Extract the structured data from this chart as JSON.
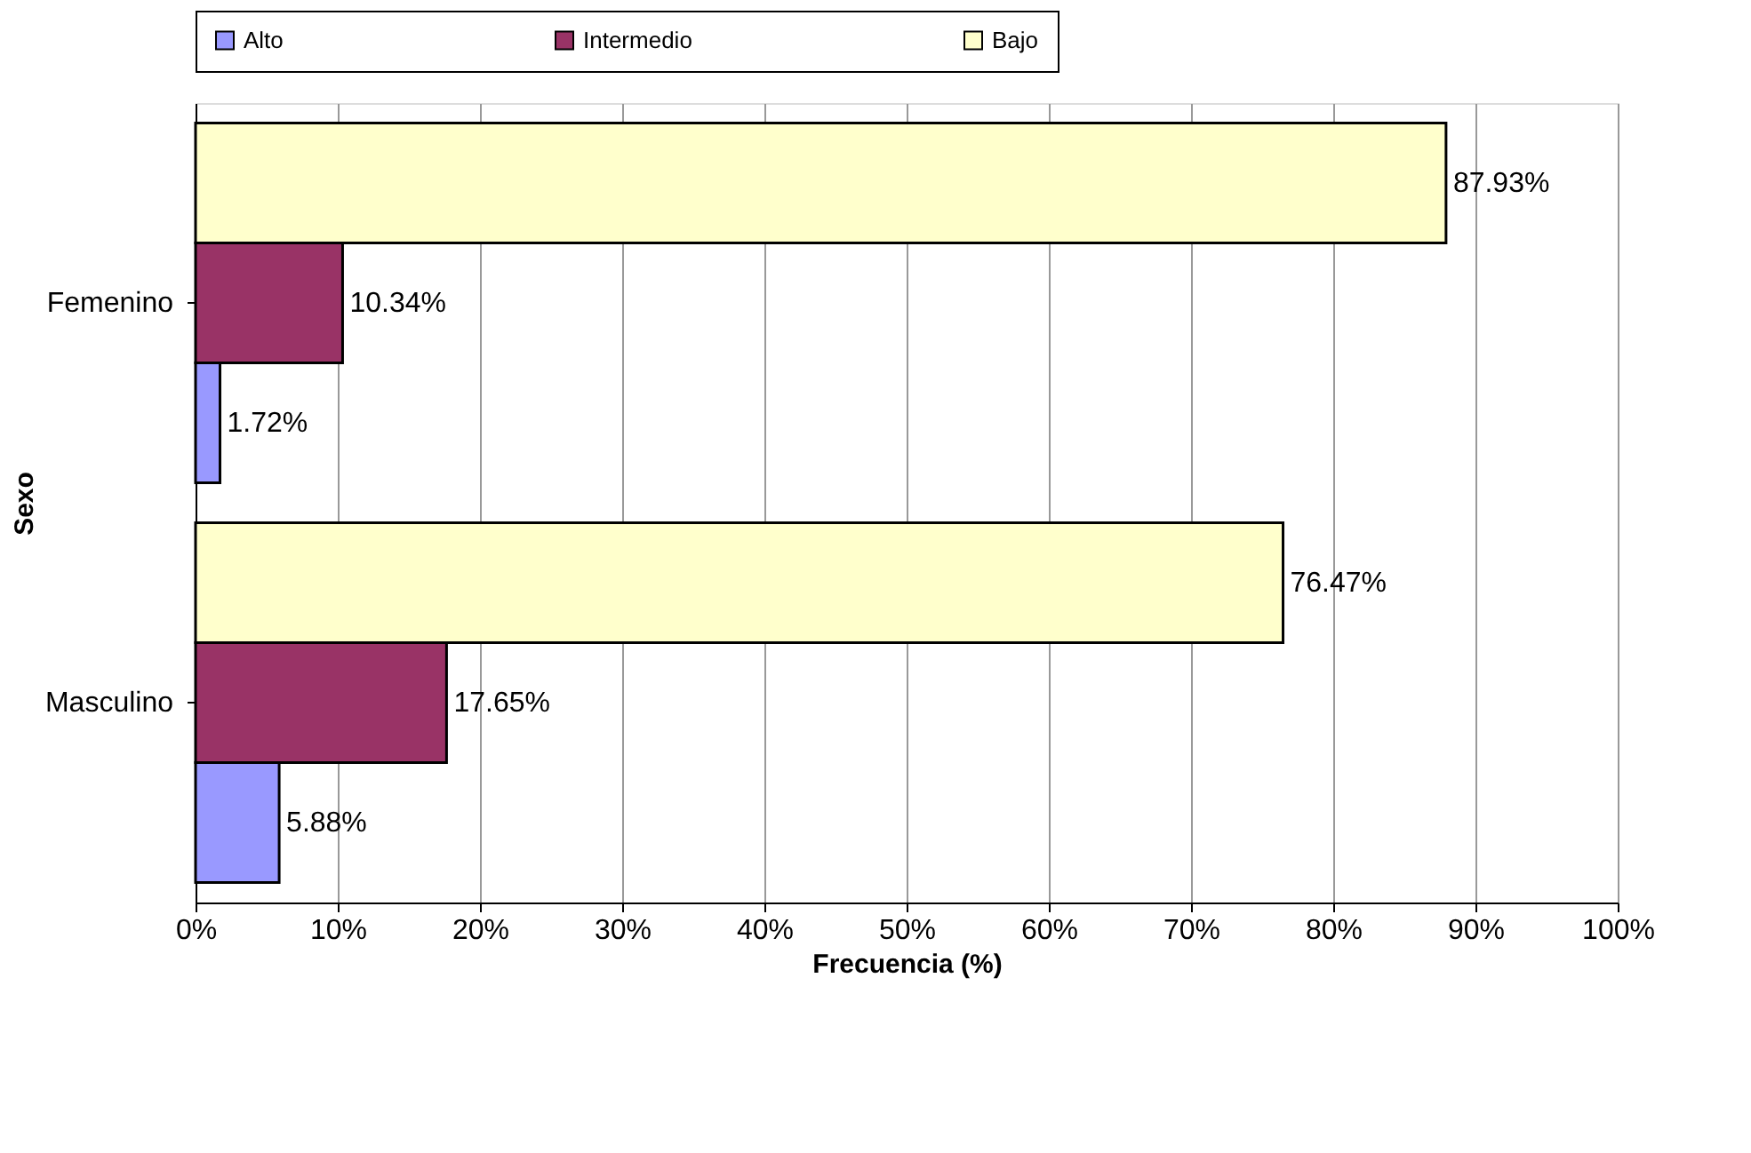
{
  "chart_data": {
    "type": "bar",
    "orientation": "horizontal",
    "xlabel": "Frecuencia (%)",
    "ylabel": "Sexo",
    "categories": [
      "Femenino",
      "Masculino"
    ],
    "series": [
      {
        "name": "Alto",
        "color": "#9999ff",
        "values": [
          1.72,
          5.88
        ],
        "value_labels": [
          "1.72%",
          "5.88%"
        ]
      },
      {
        "name": "Intermedio",
        "color": "#993366",
        "values": [
          10.34,
          17.65
        ],
        "value_labels": [
          "10.34%",
          "17.65%"
        ]
      },
      {
        "name": "Bajo",
        "color": "#ffffcc",
        "values": [
          87.93,
          76.47
        ],
        "value_labels": [
          "87.93%",
          "76.47%"
        ]
      }
    ],
    "xlim": [
      0,
      100
    ],
    "xticks": [
      {
        "value": 0,
        "label": "0%"
      },
      {
        "value": 10,
        "label": "10%"
      },
      {
        "value": 20,
        "label": "20%"
      },
      {
        "value": 30,
        "label": "30%"
      },
      {
        "value": 40,
        "label": "40%"
      },
      {
        "value": 50,
        "label": "50%"
      },
      {
        "value": 60,
        "label": "60%"
      },
      {
        "value": 70,
        "label": "70%"
      },
      {
        "value": 80,
        "label": "80%"
      },
      {
        "value": 90,
        "label": "90%"
      },
      {
        "value": 100,
        "label": "100%"
      }
    ],
    "grid": "x",
    "legend": "top"
  }
}
